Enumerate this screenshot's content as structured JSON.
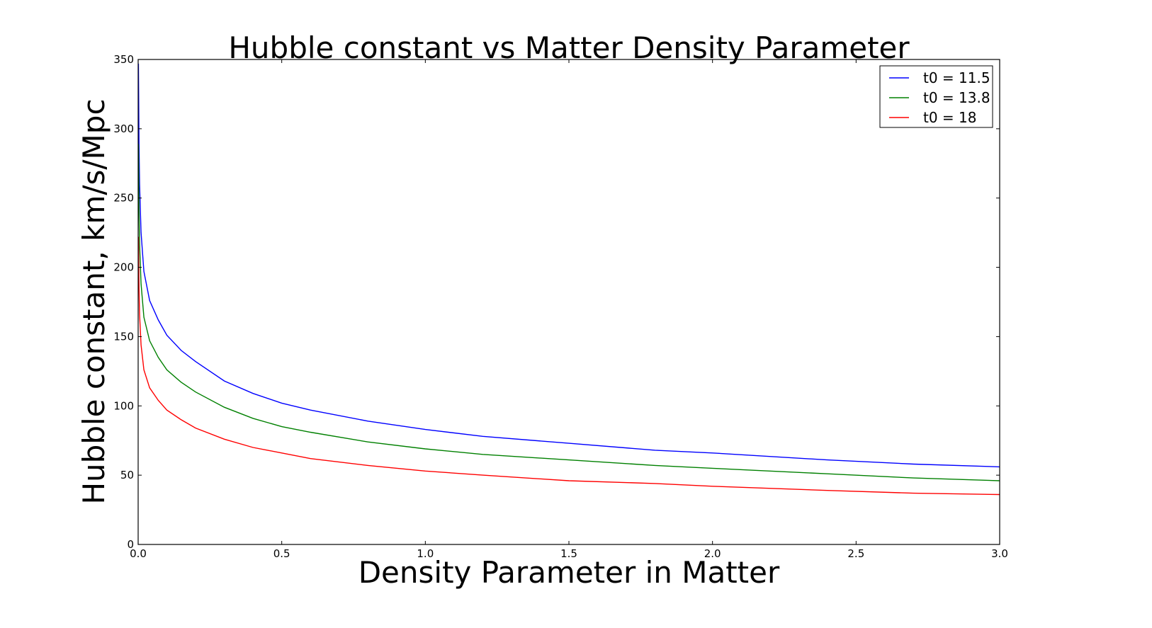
{
  "chart_data": {
    "type": "line",
    "title": "Hubble constant vs Matter Density Parameter",
    "xlabel": "Density Parameter in Matter",
    "ylabel": "Hubble constant, km/s/Mpc",
    "xlim": [
      0.0,
      3.0
    ],
    "ylim": [
      0,
      350
    ],
    "xticks": [
      0.0,
      0.5,
      1.0,
      1.5,
      2.0,
      2.5,
      3.0
    ],
    "xtick_labels": [
      "0.0",
      "0.5",
      "1.0",
      "1.5",
      "2.0",
      "2.5",
      "3.0"
    ],
    "yticks": [
      0,
      50,
      100,
      150,
      200,
      250,
      300,
      350
    ],
    "ytick_labels": [
      "0",
      "50",
      "100",
      "150",
      "200",
      "250",
      "300",
      "350"
    ],
    "grid": false,
    "legend_position": "top-right",
    "series": [
      {
        "name": "t0 = 11.5",
        "color": "#0000ff",
        "x": [
          0.001,
          0.003,
          0.005,
          0.01,
          0.02,
          0.04,
          0.07,
          0.1,
          0.15,
          0.2,
          0.3,
          0.4,
          0.5,
          0.6,
          0.8,
          1.0,
          1.2,
          1.5,
          1.8,
          2.0,
          2.4,
          2.7,
          3.0
        ],
        "y": [
          347,
          289,
          260,
          225,
          197,
          176,
          162,
          151,
          140,
          132,
          118,
          109,
          102,
          97,
          89,
          83,
          78,
          73,
          68,
          66,
          61,
          58,
          56
        ]
      },
      {
        "name": "t0 = 13.8",
        "color": "#008000",
        "x": [
          0.001,
          0.003,
          0.005,
          0.01,
          0.02,
          0.04,
          0.07,
          0.1,
          0.15,
          0.2,
          0.3,
          0.4,
          0.5,
          0.6,
          0.8,
          1.0,
          1.2,
          1.5,
          1.8,
          2.0,
          2.4,
          2.7,
          3.0
        ],
        "y": [
          289,
          241,
          217,
          188,
          164,
          147,
          135,
          126,
          117,
          110,
          99,
          91,
          85,
          81,
          74,
          69,
          65,
          61,
          57,
          55,
          51,
          48,
          46
        ]
      },
      {
        "name": "t0 = 18",
        "color": "#ff0000",
        "x": [
          0.001,
          0.003,
          0.005,
          0.01,
          0.02,
          0.04,
          0.07,
          0.1,
          0.15,
          0.2,
          0.3,
          0.4,
          0.5,
          0.6,
          0.8,
          1.0,
          1.2,
          1.5,
          1.8,
          2.0,
          2.4,
          2.7,
          3.0
        ],
        "y": [
          222,
          185,
          166,
          144,
          126,
          113,
          104,
          97,
          90,
          84,
          76,
          70,
          66,
          62,
          57,
          53,
          50,
          46,
          44,
          42,
          39,
          37,
          36
        ]
      }
    ]
  }
}
